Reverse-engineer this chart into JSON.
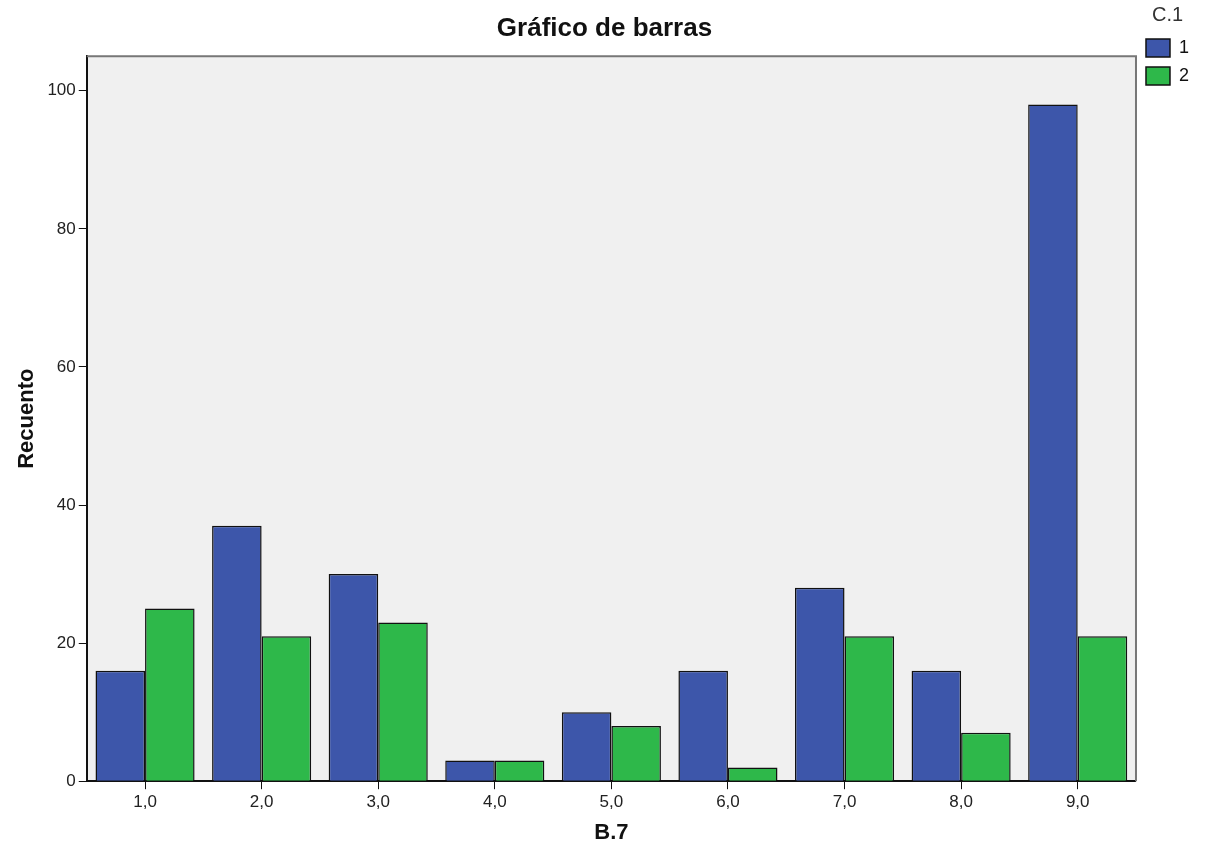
{
  "chart_data": {
    "type": "bar",
    "title": "Gráfico de barras",
    "xlabel": "B.7",
    "ylabel": "Recuento",
    "legend_title": "C.1",
    "categories": [
      "1,0",
      "2,0",
      "3,0",
      "4,0",
      "5,0",
      "6,0",
      "7,0",
      "8,0",
      "9,0"
    ],
    "series": [
      {
        "name": "1",
        "color": "#3d56aa",
        "values": [
          16,
          37,
          30,
          3,
          10,
          16,
          28,
          16,
          98
        ]
      },
      {
        "name": "2",
        "color": "#2eb84a",
        "values": [
          25,
          21,
          23,
          3,
          8,
          2,
          21,
          7,
          21
        ]
      }
    ],
    "ylim": [
      0,
      105
    ],
    "yticks": [
      0,
      20,
      40,
      60,
      80,
      100
    ],
    "grid": false,
    "legend": "top right"
  }
}
